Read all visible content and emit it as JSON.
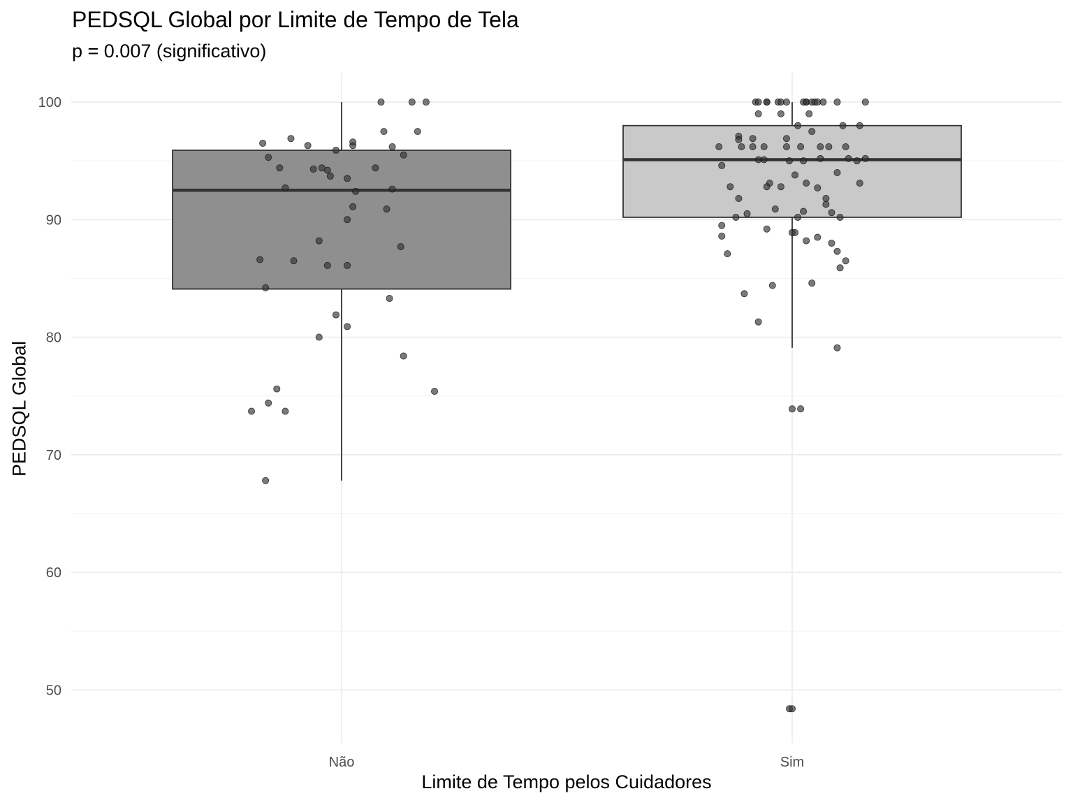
{
  "chart_data": {
    "type": "box",
    "title": "PEDSQL Global por Limite de Tempo de Tela",
    "subtitle": "p = 0.007 (significativo)",
    "xlabel": "Limite de Tempo pelos Cuidadores",
    "ylabel": "PEDSQL Global",
    "ylim": [
      45.5,
      102.5
    ],
    "yticks": [
      50,
      60,
      70,
      80,
      90,
      100
    ],
    "grid": true,
    "categories": [
      "Não",
      "Sim"
    ],
    "colors": {
      "Não": "#8f8f8f",
      "Sim": "#c9c9c9",
      "point": "#333333",
      "median": "#333333"
    },
    "boxes": [
      {
        "category": "Não",
        "min": 67.8,
        "q1": 84.1,
        "median": 92.5,
        "q3": 95.9,
        "max": 100
      },
      {
        "category": "Sim",
        "min": 79.1,
        "q1": 90.2,
        "median": 95.1,
        "q3": 98.0,
        "max": 100
      }
    ],
    "points": [
      {
        "c": "Não",
        "j": -0.28,
        "y": 96.5
      },
      {
        "c": "Não",
        "j": -0.26,
        "y": 95.3
      },
      {
        "c": "Não",
        "j": -0.22,
        "y": 94.4
      },
      {
        "c": "Não",
        "j": -0.18,
        "y": 96.9
      },
      {
        "c": "Não",
        "j": -0.12,
        "y": 96.3
      },
      {
        "c": "Não",
        "j": -0.1,
        "y": 94.3
      },
      {
        "c": "Não",
        "j": -0.07,
        "y": 94.4
      },
      {
        "c": "Não",
        "j": -0.05,
        "y": 94.2
      },
      {
        "c": "Não",
        "j": -0.04,
        "y": 93.7
      },
      {
        "c": "Não",
        "j": -0.02,
        "y": 95.9
      },
      {
        "c": "Não",
        "j": 0.04,
        "y": 96.3
      },
      {
        "c": "Não",
        "j": 0.04,
        "y": 96.6
      },
      {
        "c": "Não",
        "j": -0.2,
        "y": 92.7
      },
      {
        "c": "Não",
        "j": 0.02,
        "y": 93.5
      },
      {
        "c": "Não",
        "j": 0.05,
        "y": 92.4
      },
      {
        "c": "Não",
        "j": 0.12,
        "y": 94.4
      },
      {
        "c": "Não",
        "j": 0.14,
        "y": 100.0
      },
      {
        "c": "Não",
        "j": 0.15,
        "y": 97.5
      },
      {
        "c": "Não",
        "j": 0.18,
        "y": 96.2
      },
      {
        "c": "Não",
        "j": 0.22,
        "y": 95.5
      },
      {
        "c": "Não",
        "j": 0.18,
        "y": 92.6
      },
      {
        "c": "Não",
        "j": 0.25,
        "y": 100.0
      },
      {
        "c": "Não",
        "j": 0.3,
        "y": 100.0
      },
      {
        "c": "Não",
        "j": 0.27,
        "y": 97.5
      },
      {
        "c": "Não",
        "j": 0.04,
        "y": 91.1
      },
      {
        "c": "Não",
        "j": 0.02,
        "y": 90.0
      },
      {
        "c": "Não",
        "j": 0.16,
        "y": 90.9
      },
      {
        "c": "Não",
        "j": -0.08,
        "y": 88.2
      },
      {
        "c": "Não",
        "j": 0.21,
        "y": 87.7
      },
      {
        "c": "Não",
        "j": -0.29,
        "y": 86.6
      },
      {
        "c": "Não",
        "j": -0.17,
        "y": 86.5
      },
      {
        "c": "Não",
        "j": -0.05,
        "y": 86.1
      },
      {
        "c": "Não",
        "j": 0.02,
        "y": 86.1
      },
      {
        "c": "Não",
        "j": -0.27,
        "y": 84.2
      },
      {
        "c": "Não",
        "j": 0.17,
        "y": 83.3
      },
      {
        "c": "Não",
        "j": -0.02,
        "y": 81.9
      },
      {
        "c": "Não",
        "j": 0.02,
        "y": 80.9
      },
      {
        "c": "Não",
        "j": -0.08,
        "y": 80.0
      },
      {
        "c": "Não",
        "j": 0.22,
        "y": 78.4
      },
      {
        "c": "Não",
        "j": -0.23,
        "y": 75.6
      },
      {
        "c": "Não",
        "j": 0.33,
        "y": 75.4
      },
      {
        "c": "Não",
        "j": -0.26,
        "y": 74.4
      },
      {
        "c": "Não",
        "j": -0.32,
        "y": 73.7
      },
      {
        "c": "Não",
        "j": -0.2,
        "y": 73.7
      },
      {
        "c": "Não",
        "j": -0.27,
        "y": 67.8
      },
      {
        "c": "Sim",
        "j": -0.13,
        "y": 100.0
      },
      {
        "c": "Sim",
        "j": -0.12,
        "y": 100.0
      },
      {
        "c": "Sim",
        "j": -0.09,
        "y": 100.0
      },
      {
        "c": "Sim",
        "j": -0.09,
        "y": 100.0
      },
      {
        "c": "Sim",
        "j": -0.05,
        "y": 100.0
      },
      {
        "c": "Sim",
        "j": -0.04,
        "y": 100.0
      },
      {
        "c": "Sim",
        "j": -0.02,
        "y": 100.0
      },
      {
        "c": "Sim",
        "j": 0.04,
        "y": 100.0
      },
      {
        "c": "Sim",
        "j": 0.05,
        "y": 100.0
      },
      {
        "c": "Sim",
        "j": 0.05,
        "y": 100.0
      },
      {
        "c": "Sim",
        "j": 0.07,
        "y": 100.0
      },
      {
        "c": "Sim",
        "j": 0.08,
        "y": 100.0
      },
      {
        "c": "Sim",
        "j": 0.09,
        "y": 100.0
      },
      {
        "c": "Sim",
        "j": 0.11,
        "y": 100.0
      },
      {
        "c": "Sim",
        "j": 0.16,
        "y": 100.0
      },
      {
        "c": "Sim",
        "j": 0.26,
        "y": 100.0
      },
      {
        "c": "Sim",
        "j": -0.12,
        "y": 99.0
      },
      {
        "c": "Sim",
        "j": -0.04,
        "y": 99.0
      },
      {
        "c": "Sim",
        "j": 0.06,
        "y": 99.0
      },
      {
        "c": "Sim",
        "j": 0.02,
        "y": 98.0
      },
      {
        "c": "Sim",
        "j": 0.18,
        "y": 98.0
      },
      {
        "c": "Sim",
        "j": 0.24,
        "y": 98.0
      },
      {
        "c": "Sim",
        "j": 0.07,
        "y": 97.5
      },
      {
        "c": "Sim",
        "j": -0.19,
        "y": 97.1
      },
      {
        "c": "Sim",
        "j": -0.19,
        "y": 96.8
      },
      {
        "c": "Sim",
        "j": -0.14,
        "y": 96.9
      },
      {
        "c": "Sim",
        "j": -0.02,
        "y": 96.9
      },
      {
        "c": "Sim",
        "j": -0.26,
        "y": 96.2
      },
      {
        "c": "Sim",
        "j": -0.18,
        "y": 96.2
      },
      {
        "c": "Sim",
        "j": -0.14,
        "y": 96.2
      },
      {
        "c": "Sim",
        "j": -0.1,
        "y": 96.2
      },
      {
        "c": "Sim",
        "j": -0.02,
        "y": 96.2
      },
      {
        "c": "Sim",
        "j": 0.03,
        "y": 96.2
      },
      {
        "c": "Sim",
        "j": 0.1,
        "y": 96.2
      },
      {
        "c": "Sim",
        "j": 0.13,
        "y": 96.2
      },
      {
        "c": "Sim",
        "j": 0.19,
        "y": 96.2
      },
      {
        "c": "Sim",
        "j": -0.12,
        "y": 95.1
      },
      {
        "c": "Sim",
        "j": -0.1,
        "y": 95.1
      },
      {
        "c": "Sim",
        "j": 0.1,
        "y": 95.2
      },
      {
        "c": "Sim",
        "j": 0.2,
        "y": 95.2
      },
      {
        "c": "Sim",
        "j": 0.26,
        "y": 95.2
      },
      {
        "c": "Sim",
        "j": -0.01,
        "y": 95.0
      },
      {
        "c": "Sim",
        "j": 0.04,
        "y": 95.0
      },
      {
        "c": "Sim",
        "j": 0.23,
        "y": 95.0
      },
      {
        "c": "Sim",
        "j": -0.25,
        "y": 94.6
      },
      {
        "c": "Sim",
        "j": 0.16,
        "y": 94.0
      },
      {
        "c": "Sim",
        "j": 0.01,
        "y": 93.8
      },
      {
        "c": "Sim",
        "j": 0.24,
        "y": 93.1
      },
      {
        "c": "Sim",
        "j": -0.08,
        "y": 93.1
      },
      {
        "c": "Sim",
        "j": -0.22,
        "y": 92.8
      },
      {
        "c": "Sim",
        "j": -0.09,
        "y": 92.8
      },
      {
        "c": "Sim",
        "j": -0.04,
        "y": 92.8
      },
      {
        "c": "Sim",
        "j": 0.05,
        "y": 93.1
      },
      {
        "c": "Sim",
        "j": 0.09,
        "y": 92.7
      },
      {
        "c": "Sim",
        "j": -0.19,
        "y": 91.8
      },
      {
        "c": "Sim",
        "j": 0.12,
        "y": 91.8
      },
      {
        "c": "Sim",
        "j": 0.12,
        "y": 91.3
      },
      {
        "c": "Sim",
        "j": -0.06,
        "y": 90.9
      },
      {
        "c": "Sim",
        "j": 0.04,
        "y": 90.7
      },
      {
        "c": "Sim",
        "j": 0.14,
        "y": 90.6
      },
      {
        "c": "Sim",
        "j": -0.16,
        "y": 90.5
      },
      {
        "c": "Sim",
        "j": -0.2,
        "y": 90.2
      },
      {
        "c": "Sim",
        "j": 0.02,
        "y": 90.2
      },
      {
        "c": "Sim",
        "j": 0.17,
        "y": 90.2
      },
      {
        "c": "Sim",
        "j": -0.25,
        "y": 89.5
      },
      {
        "c": "Sim",
        "j": -0.09,
        "y": 89.2
      },
      {
        "c": "Sim",
        "j": 0.0,
        "y": 88.9
      },
      {
        "c": "Sim",
        "j": 0.01,
        "y": 88.9
      },
      {
        "c": "Sim",
        "j": -0.25,
        "y": 88.6
      },
      {
        "c": "Sim",
        "j": 0.05,
        "y": 88.2
      },
      {
        "c": "Sim",
        "j": 0.09,
        "y": 88.5
      },
      {
        "c": "Sim",
        "j": 0.14,
        "y": 88.0
      },
      {
        "c": "Sim",
        "j": 0.16,
        "y": 87.3
      },
      {
        "c": "Sim",
        "j": -0.23,
        "y": 87.1
      },
      {
        "c": "Sim",
        "j": 0.19,
        "y": 86.5
      },
      {
        "c": "Sim",
        "j": 0.17,
        "y": 85.9
      },
      {
        "c": "Sim",
        "j": 0.07,
        "y": 84.6
      },
      {
        "c": "Sim",
        "j": -0.07,
        "y": 84.4
      },
      {
        "c": "Sim",
        "j": -0.17,
        "y": 83.7
      },
      {
        "c": "Sim",
        "j": -0.12,
        "y": 81.3
      },
      {
        "c": "Sim",
        "j": 0.16,
        "y": 79.1
      },
      {
        "c": "Sim",
        "j": 0.0,
        "y": 73.9
      },
      {
        "c": "Sim",
        "j": 0.03,
        "y": 73.9
      },
      {
        "c": "Sim",
        "j": -0.01,
        "y": 48.4
      },
      {
        "c": "Sim",
        "j": 0.0,
        "y": 48.4
      }
    ]
  }
}
